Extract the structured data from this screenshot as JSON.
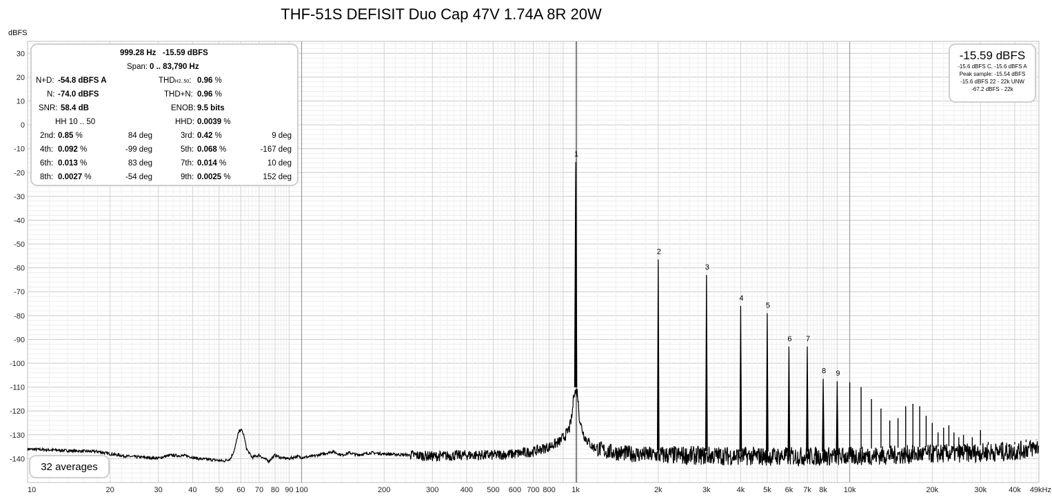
{
  "chart_data": {
    "type": "line",
    "title": "THF-51S DEFISIT Duo Cap 47V 1.74A 8R 20W",
    "ylabel": "dBFS",
    "xscale": "log",
    "xlim": [
      10,
      49000
    ],
    "ylim": [
      -150,
      35
    ],
    "yticks": [
      30,
      20,
      10,
      0,
      -10,
      -20,
      -30,
      -40,
      -50,
      -60,
      -70,
      -80,
      -90,
      -100,
      -110,
      -120,
      -130,
      -140
    ],
    "xticks": [
      {
        "v": 10,
        "label": "10"
      },
      {
        "v": 20,
        "label": "20"
      },
      {
        "v": 30,
        "label": "30"
      },
      {
        "v": 40,
        "label": "40"
      },
      {
        "v": 50,
        "label": "50"
      },
      {
        "v": 60,
        "label": "60"
      },
      {
        "v": 70,
        "label": "70"
      },
      {
        "v": 80,
        "label": "80"
      },
      {
        "v": 90,
        "label": "90"
      },
      {
        "v": 100,
        "label": "100"
      },
      {
        "v": 200,
        "label": "200"
      },
      {
        "v": 300,
        "label": "300"
      },
      {
        "v": 400,
        "label": "400"
      },
      {
        "v": 500,
        "label": "500"
      },
      {
        "v": 600,
        "label": "600"
      },
      {
        "v": 700,
        "label": "700"
      },
      {
        "v": 800,
        "label": "800"
      },
      {
        "v": 1000,
        "label": "1k"
      },
      {
        "v": 2000,
        "label": "2k"
      },
      {
        "v": 3000,
        "label": "3k"
      },
      {
        "v": 4000,
        "label": "4k"
      },
      {
        "v": 5000,
        "label": "5k"
      },
      {
        "v": 6000,
        "label": "6k"
      },
      {
        "v": 7000,
        "label": "7k"
      },
      {
        "v": 8000,
        "label": "8k"
      },
      {
        "v": 10000,
        "label": "10k"
      },
      {
        "v": 20000,
        "label": "20k"
      },
      {
        "v": 30000,
        "label": "30k"
      },
      {
        "v": 40000,
        "label": "40k"
      },
      {
        "v": 49000,
        "label": "49kHz"
      }
    ],
    "marker_freq": 1000,
    "harmonics": [
      {
        "n": "1",
        "f": 1000,
        "db": -15.6
      },
      {
        "n": "2",
        "f": 2000,
        "db": -56.5
      },
      {
        "n": "3",
        "f": 3000,
        "db": -63
      },
      {
        "n": "4",
        "f": 4000,
        "db": -76
      },
      {
        "n": "5",
        "f": 5000,
        "db": -79
      },
      {
        "n": "6",
        "f": 6000,
        "db": -93
      },
      {
        "n": "7",
        "f": 7000,
        "db": -93
      },
      {
        "n": "8",
        "f": 8000,
        "db": -106.5
      },
      {
        "n": "9",
        "f": 9000,
        "db": -107.5
      }
    ],
    "extra_peaks": [
      [
        10000,
        -108
      ],
      [
        11000,
        -110
      ],
      [
        12000,
        -115
      ],
      [
        13000,
        -119
      ],
      [
        14000,
        -124
      ],
      [
        15000,
        -123
      ],
      [
        16000,
        -118
      ],
      [
        17000,
        -117
      ],
      [
        18000,
        -118
      ],
      [
        19000,
        -122
      ],
      [
        20000,
        -125
      ],
      [
        21000,
        -129
      ],
      [
        22000,
        -127
      ],
      [
        23000,
        -126
      ],
      [
        24000,
        -129
      ],
      [
        25000,
        -131
      ],
      [
        26000,
        -130
      ],
      [
        28000,
        -131
      ],
      [
        30000,
        -128
      ],
      [
        32000,
        -133
      ],
      [
        34000,
        -134
      ],
      [
        36000,
        -133
      ],
      [
        38000,
        -135
      ],
      [
        40000,
        -133
      ],
      [
        44000,
        -132
      ],
      [
        48000,
        -132
      ]
    ],
    "noise_floor": [
      [
        10,
        -136
      ],
      [
        12,
        -136.3
      ],
      [
        15,
        -136.8
      ],
      [
        18,
        -137
      ],
      [
        20,
        -138
      ],
      [
        23,
        -139
      ],
      [
        27,
        -139.5
      ],
      [
        30,
        -139.8
      ],
      [
        33,
        -138.6
      ],
      [
        38,
        -138.8
      ],
      [
        42,
        -140
      ],
      [
        48,
        -140.5
      ],
      [
        52,
        -141
      ],
      [
        55,
        -140
      ],
      [
        57,
        -136
      ],
      [
        58.5,
        -130
      ],
      [
        60,
        -127.5
      ],
      [
        61.5,
        -130
      ],
      [
        63,
        -136
      ],
      [
        66,
        -139.5
      ],
      [
        70,
        -138.5
      ],
      [
        73,
        -140
      ],
      [
        76,
        -141
      ],
      [
        80,
        -138.5
      ],
      [
        84,
        -139.6
      ],
      [
        90,
        -140
      ],
      [
        96,
        -139
      ],
      [
        100,
        -139.5
      ],
      [
        110,
        -139
      ],
      [
        120,
        -138
      ],
      [
        130,
        -137
      ],
      [
        140,
        -138.5
      ],
      [
        150,
        -137.5
      ],
      [
        160,
        -138.5
      ],
      [
        180,
        -137.5
      ],
      [
        200,
        -138
      ],
      [
        250,
        -138.5
      ],
      [
        300,
        -139
      ],
      [
        400,
        -138.5
      ],
      [
        500,
        -138.5
      ],
      [
        600,
        -138
      ],
      [
        700,
        -137
      ],
      [
        800,
        -135
      ],
      [
        870,
        -133
      ],
      [
        920,
        -130
      ],
      [
        950,
        -127
      ],
      [
        970,
        -122
      ],
      [
        985,
        -112
      ],
      [
        1015,
        -112
      ],
      [
        1030,
        -122
      ],
      [
        1050,
        -127
      ],
      [
        1080,
        -131
      ],
      [
        1150,
        -135
      ],
      [
        1300,
        -137
      ],
      [
        1600,
        -138
      ],
      [
        2000,
        -138.5
      ],
      [
        5000,
        -139
      ],
      [
        10000,
        -139
      ],
      [
        20000,
        -138
      ],
      [
        40000,
        -137
      ],
      [
        49000,
        -135
      ]
    ]
  },
  "stats": {
    "peak_freq": "999.28 Hz",
    "peak_level": "-15.59 dBFS",
    "span_label": "Span:",
    "span_value": "0 .. 83,790 Hz",
    "nd_label": "N+D:",
    "nd_value": "-54.8 dBFS A",
    "n_label": "N:",
    "n_value": "-74.0 dBFS",
    "snr_label": "SNR:",
    "snr_value": "58.4 dB",
    "hh_label": "HH 10 .. 50",
    "thd_label": "THD",
    "thd_sub": "H2..50",
    "thd_colon": ":",
    "thd_value": "0.96",
    "thdn_label": "THD+N:",
    "thdn_value": "0.96",
    "enob_label": "ENOB:",
    "enob_value": "9.5 bits",
    "hhd_label": "HHD:",
    "hhd_value": "0.0039",
    "pct": "%",
    "harmonic_rows": [
      {
        "l1": "2nd:",
        "v1": "0.85",
        "d1": "84 deg",
        "l2": "3rd:",
        "v2": "0.42",
        "d2": "9 deg"
      },
      {
        "l1": "4th:",
        "v1": "0.092",
        "d1": "-99 deg",
        "l2": "5th:",
        "v2": "0.068",
        "d2": "-167 deg"
      },
      {
        "l1": "6th:",
        "v1": "0.013",
        "d1": "83 deg",
        "l2": "7th:",
        "v2": "0.014",
        "d2": "10 deg"
      },
      {
        "l1": "8th:",
        "v1": "0.0027",
        "d1": "-54 deg",
        "l2": "9th:",
        "v2": "0.0025",
        "d2": "152 deg"
      }
    ]
  },
  "level_box": {
    "big": "-15.59 dBFS",
    "line1": "-15.6 dBFS C, -15.6 dBFS A",
    "line2": "Peak sample: -15.54 dBFS",
    "line3": "-15.6 dBFS 22 - 22k UNW",
    "line4": "-67.2 dBFS - 22k"
  },
  "averages": "32 averages"
}
